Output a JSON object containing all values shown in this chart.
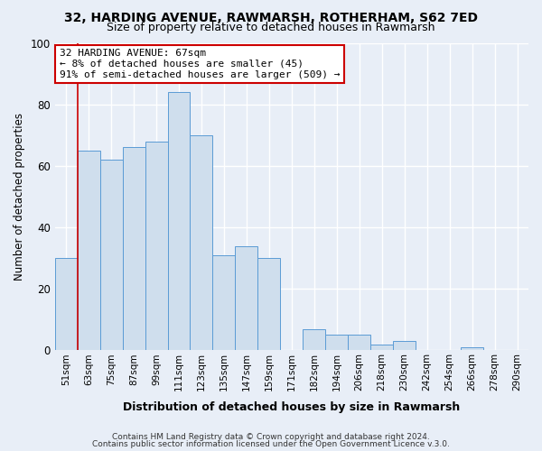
{
  "title": "32, HARDING AVENUE, RAWMARSH, ROTHERHAM, S62 7ED",
  "subtitle": "Size of property relative to detached houses in Rawmarsh",
  "xlabel": "Distribution of detached houses by size in Rawmarsh",
  "ylabel": "Number of detached properties",
  "bar_labels": [
    "51sqm",
    "63sqm",
    "75sqm",
    "87sqm",
    "99sqm",
    "111sqm",
    "123sqm",
    "135sqm",
    "147sqm",
    "159sqm",
    "171sqm",
    "182sqm",
    "194sqm",
    "206sqm",
    "218sqm",
    "230sqm",
    "242sqm",
    "254sqm",
    "266sqm",
    "278sqm",
    "290sqm"
  ],
  "bar_values": [
    30,
    65,
    62,
    66,
    68,
    84,
    70,
    31,
    34,
    30,
    0,
    7,
    5,
    5,
    2,
    3,
    0,
    0,
    1,
    0,
    0
  ],
  "bar_color": "#cfdeed",
  "bar_edge_color": "#5b9bd5",
  "vline_x": 0.5,
  "vline_color": "#cc0000",
  "annotation_title": "32 HARDING AVENUE: 67sqm",
  "annotation_line1": "← 8% of detached houses are smaller (45)",
  "annotation_line2": "91% of semi-detached houses are larger (509) →",
  "annotation_box_facecolor": "#ffffff",
  "annotation_box_edgecolor": "#cc0000",
  "ylim": [
    0,
    100
  ],
  "yticks": [
    0,
    20,
    40,
    60,
    80,
    100
  ],
  "footer1": "Contains HM Land Registry data © Crown copyright and database right 2024.",
  "footer2": "Contains public sector information licensed under the Open Government Licence v.3.0.",
  "fig_facecolor": "#e8eef7",
  "plot_facecolor": "#e8eef7",
  "grid_color": "#ffffff",
  "title_fontsize": 10,
  "subtitle_fontsize": 9
}
